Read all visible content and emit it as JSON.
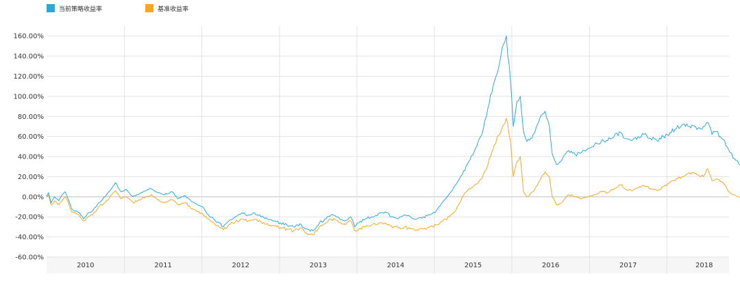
{
  "colors": {
    "strategy": "#2aa7de",
    "benchmark": "#f5a623",
    "grid": "#e2e2e2",
    "zero_line": "#bdbdbd",
    "axis_band": "#f6f6f6"
  },
  "chart_data": {
    "type": "line",
    "title": "",
    "xlabel": "",
    "ylabel": "",
    "legend_position": "top-left",
    "grid": true,
    "ylim": [
      -60,
      170
    ],
    "xlim": [
      "2009-06-29",
      "2018-04-20"
    ],
    "y_ticks": [
      -60,
      -40,
      -20,
      0,
      20,
      40,
      60,
      80,
      100,
      120,
      140,
      160
    ],
    "y_tick_labels": [
      "-60.00%",
      "-40.00%",
      "-20.00%",
      "0.00%",
      "20.00%",
      "40.00%",
      "60.00%",
      "80.00%",
      "100.00%",
      "120.00%",
      "140.00%",
      "160.00%"
    ],
    "x_ticks": [
      "2010",
      "2011",
      "2012",
      "2013",
      "2014",
      "2015",
      "2016",
      "2017",
      "2018"
    ],
    "x_gridlines": [
      "2010-07-01",
      "2011-07-01",
      "2012-07-01",
      "2013-07-01",
      "2014-07-01",
      "2015-07-01",
      "2016-07-01",
      "2017-07-01"
    ],
    "series": [
      {
        "name": "当前策略收益率",
        "key": "strategy",
        "points": [
          [
            "2009-06-29",
            0
          ],
          [
            "2009-07-08",
            4
          ],
          [
            "2009-07-20",
            -6
          ],
          [
            "2009-08-05",
            0
          ],
          [
            "2009-08-25",
            -4
          ],
          [
            "2009-09-10",
            2
          ],
          [
            "2009-09-25",
            5
          ],
          [
            "2009-10-10",
            -3
          ],
          [
            "2009-10-25",
            -12
          ],
          [
            "2009-11-15",
            -14
          ],
          [
            "2009-12-01",
            -16
          ],
          [
            "2009-12-20",
            -22
          ],
          [
            "2010-01-10",
            -16
          ],
          [
            "2010-02-01",
            -14
          ],
          [
            "2010-03-01",
            -6
          ],
          [
            "2010-04-01",
            0
          ],
          [
            "2010-05-01",
            8
          ],
          [
            "2010-05-20",
            14
          ],
          [
            "2010-06-15",
            5
          ],
          [
            "2010-07-10",
            7
          ],
          [
            "2010-08-10",
            0
          ],
          [
            "2010-09-10",
            3
          ],
          [
            "2010-10-10",
            6
          ],
          [
            "2010-11-05",
            8
          ],
          [
            "2010-12-05",
            4
          ],
          [
            "2011-01-05",
            2
          ],
          [
            "2011-02-10",
            5
          ],
          [
            "2011-03-10",
            -2
          ],
          [
            "2011-04-15",
            1
          ],
          [
            "2011-05-15",
            -5
          ],
          [
            "2011-06-10",
            -8
          ],
          [
            "2011-07-05",
            -10
          ],
          [
            "2011-08-01",
            -18
          ],
          [
            "2011-08-25",
            -22
          ],
          [
            "2011-09-20",
            -26
          ],
          [
            "2011-10-10",
            -30
          ],
          [
            "2011-11-05",
            -24
          ],
          [
            "2011-12-05",
            -20
          ],
          [
            "2012-01-05",
            -16
          ],
          [
            "2012-02-05",
            -18
          ],
          [
            "2012-03-05",
            -16
          ],
          [
            "2012-04-05",
            -20
          ],
          [
            "2012-05-05",
            -22
          ],
          [
            "2012-06-05",
            -24
          ],
          [
            "2012-07-05",
            -26
          ],
          [
            "2012-08-05",
            -28
          ],
          [
            "2012-09-05",
            -30
          ],
          [
            "2012-10-05",
            -27
          ],
          [
            "2012-11-05",
            -32
          ],
          [
            "2012-12-05",
            -34
          ],
          [
            "2013-01-05",
            -26
          ],
          [
            "2013-02-05",
            -22
          ],
          [
            "2013-03-01",
            -18
          ],
          [
            "2013-04-01",
            -20
          ],
          [
            "2013-05-01",
            -24
          ],
          [
            "2013-06-01",
            -20
          ],
          [
            "2013-06-20",
            -30
          ],
          [
            "2013-07-10",
            -26
          ],
          [
            "2013-08-10",
            -22
          ],
          [
            "2013-09-10",
            -20
          ],
          [
            "2013-10-10",
            -17
          ],
          [
            "2013-11-10",
            -15
          ],
          [
            "2013-12-10",
            -20
          ],
          [
            "2014-01-10",
            -22
          ],
          [
            "2014-02-10",
            -18
          ],
          [
            "2014-03-10",
            -20
          ],
          [
            "2014-04-10",
            -22
          ],
          [
            "2014-05-10",
            -20
          ],
          [
            "2014-06-10",
            -18
          ],
          [
            "2014-07-10",
            -14
          ],
          [
            "2014-08-10",
            -5
          ],
          [
            "2014-09-10",
            3
          ],
          [
            "2014-10-10",
            12
          ],
          [
            "2014-11-10",
            22
          ],
          [
            "2014-12-10",
            35
          ],
          [
            "2015-01-10",
            48
          ],
          [
            "2015-02-10",
            62
          ],
          [
            "2015-03-10",
            88
          ],
          [
            "2015-04-10",
            115
          ],
          [
            "2015-05-10",
            140
          ],
          [
            "2015-06-05",
            160
          ],
          [
            "2015-06-25",
            115
          ],
          [
            "2015-07-08",
            70
          ],
          [
            "2015-07-25",
            95
          ],
          [
            "2015-08-10",
            100
          ],
          [
            "2015-08-25",
            65
          ],
          [
            "2015-09-10",
            55
          ],
          [
            "2015-10-10",
            62
          ],
          [
            "2015-11-10",
            78
          ],
          [
            "2015-12-05",
            85
          ],
          [
            "2015-12-25",
            70
          ],
          [
            "2016-01-08",
            42
          ],
          [
            "2016-01-28",
            32
          ],
          [
            "2016-02-25",
            38
          ],
          [
            "2016-03-25",
            46
          ],
          [
            "2016-04-25",
            42
          ],
          [
            "2016-05-25",
            44
          ],
          [
            "2016-06-25",
            48
          ],
          [
            "2016-07-25",
            52
          ],
          [
            "2016-08-25",
            55
          ],
          [
            "2016-09-25",
            56
          ],
          [
            "2016-10-25",
            60
          ],
          [
            "2016-11-25",
            64
          ],
          [
            "2016-12-15",
            58
          ],
          [
            "2017-01-15",
            56
          ],
          [
            "2017-02-15",
            60
          ],
          [
            "2017-03-15",
            62
          ],
          [
            "2017-04-15",
            58
          ],
          [
            "2017-05-15",
            56
          ],
          [
            "2017-06-15",
            60
          ],
          [
            "2017-07-15",
            64
          ],
          [
            "2017-08-15",
            68
          ],
          [
            "2017-09-15",
            72
          ],
          [
            "2017-10-15",
            70
          ],
          [
            "2017-11-20",
            67
          ],
          [
            "2017-12-20",
            70
          ],
          [
            "2018-01-10",
            74
          ],
          [
            "2018-01-30",
            62
          ],
          [
            "2018-02-20",
            65
          ],
          [
            "2018-03-10",
            60
          ],
          [
            "2018-03-30",
            56
          ],
          [
            "2018-04-10",
            50
          ],
          [
            "2018-04-25",
            44
          ],
          [
            "2018-05-15",
            38
          ],
          [
            "2018-06-05",
            33
          ],
          [
            "2018-06-25",
            28
          ],
          [
            "2018-07-10",
            32
          ]
        ]
      },
      {
        "name": "基准收益率",
        "key": "benchmark",
        "points": [
          [
            "2009-06-29",
            0
          ],
          [
            "2009-07-08",
            2
          ],
          [
            "2009-07-20",
            -8
          ],
          [
            "2009-08-05",
            -4
          ],
          [
            "2009-08-25",
            -8
          ],
          [
            "2009-09-10",
            -4
          ],
          [
            "2009-09-25",
            0
          ],
          [
            "2009-10-10",
            -6
          ],
          [
            "2009-10-25",
            -15
          ],
          [
            "2009-11-15",
            -17
          ],
          [
            "2009-12-01",
            -19
          ],
          [
            "2009-12-20",
            -24
          ],
          [
            "2010-01-10",
            -20
          ],
          [
            "2010-02-01",
            -18
          ],
          [
            "2010-03-01",
            -10
          ],
          [
            "2010-04-01",
            -6
          ],
          [
            "2010-05-01",
            2
          ],
          [
            "2010-05-20",
            6
          ],
          [
            "2010-06-15",
            -2
          ],
          [
            "2010-07-10",
            0
          ],
          [
            "2010-08-10",
            -6
          ],
          [
            "2010-09-10",
            -3
          ],
          [
            "2010-10-10",
            0
          ],
          [
            "2010-11-05",
            2
          ],
          [
            "2010-12-05",
            -3
          ],
          [
            "2011-01-05",
            -6
          ],
          [
            "2011-02-10",
            -3
          ],
          [
            "2011-03-10",
            -8
          ],
          [
            "2011-04-15",
            -6
          ],
          [
            "2011-05-15",
            -12
          ],
          [
            "2011-06-10",
            -15
          ],
          [
            "2011-07-05",
            -17
          ],
          [
            "2011-08-01",
            -22
          ],
          [
            "2011-08-25",
            -26
          ],
          [
            "2011-09-20",
            -30
          ],
          [
            "2011-10-10",
            -33
          ],
          [
            "2011-11-05",
            -28
          ],
          [
            "2011-12-05",
            -25
          ],
          [
            "2012-01-05",
            -22
          ],
          [
            "2012-02-05",
            -24
          ],
          [
            "2012-03-05",
            -22
          ],
          [
            "2012-04-05",
            -25
          ],
          [
            "2012-05-05",
            -27
          ],
          [
            "2012-06-05",
            -29
          ],
          [
            "2012-07-05",
            -31
          ],
          [
            "2012-08-05",
            -32
          ],
          [
            "2012-09-05",
            -34
          ],
          [
            "2012-10-05",
            -31
          ],
          [
            "2012-11-05",
            -36
          ],
          [
            "2012-12-05",
            -38
          ],
          [
            "2013-01-05",
            -30
          ],
          [
            "2013-02-05",
            -26
          ],
          [
            "2013-03-01",
            -22
          ],
          [
            "2013-04-01",
            -24
          ],
          [
            "2013-05-01",
            -27
          ],
          [
            "2013-06-01",
            -24
          ],
          [
            "2013-06-20",
            -34
          ],
          [
            "2013-07-10",
            -32
          ],
          [
            "2013-08-10",
            -30
          ],
          [
            "2013-09-10",
            -28
          ],
          [
            "2013-10-10",
            -27
          ],
          [
            "2013-11-10",
            -26
          ],
          [
            "2013-12-10",
            -29
          ],
          [
            "2014-01-10",
            -31
          ],
          [
            "2014-02-10",
            -30
          ],
          [
            "2014-03-10",
            -32
          ],
          [
            "2014-04-10",
            -33
          ],
          [
            "2014-05-10",
            -32
          ],
          [
            "2014-06-10",
            -30
          ],
          [
            "2014-07-10",
            -28
          ],
          [
            "2014-08-10",
            -24
          ],
          [
            "2014-09-10",
            -20
          ],
          [
            "2014-10-10",
            -14
          ],
          [
            "2014-11-10",
            0
          ],
          [
            "2014-12-10",
            8
          ],
          [
            "2015-01-10",
            12
          ],
          [
            "2015-02-10",
            18
          ],
          [
            "2015-03-10",
            32
          ],
          [
            "2015-04-10",
            52
          ],
          [
            "2015-05-10",
            65
          ],
          [
            "2015-06-05",
            78
          ],
          [
            "2015-06-25",
            55
          ],
          [
            "2015-07-08",
            20
          ],
          [
            "2015-07-25",
            35
          ],
          [
            "2015-08-10",
            40
          ],
          [
            "2015-08-25",
            5
          ],
          [
            "2015-09-10",
            0
          ],
          [
            "2015-10-10",
            5
          ],
          [
            "2015-11-10",
            16
          ],
          [
            "2015-12-05",
            25
          ],
          [
            "2015-12-25",
            20
          ],
          [
            "2016-01-08",
            0
          ],
          [
            "2016-01-28",
            -8
          ],
          [
            "2016-02-25",
            -5
          ],
          [
            "2016-03-25",
            2
          ],
          [
            "2016-04-25",
            0
          ],
          [
            "2016-05-25",
            -2
          ],
          [
            "2016-06-25",
            0
          ],
          [
            "2016-07-25",
            2
          ],
          [
            "2016-08-25",
            5
          ],
          [
            "2016-09-25",
            4
          ],
          [
            "2016-10-25",
            8
          ],
          [
            "2016-11-25",
            12
          ],
          [
            "2016-12-15",
            8
          ],
          [
            "2017-01-15",
            6
          ],
          [
            "2017-02-15",
            9
          ],
          [
            "2017-03-15",
            11
          ],
          [
            "2017-04-15",
            8
          ],
          [
            "2017-05-15",
            6
          ],
          [
            "2017-06-15",
            10
          ],
          [
            "2017-07-15",
            14
          ],
          [
            "2017-08-15",
            18
          ],
          [
            "2017-09-15",
            20
          ],
          [
            "2017-10-15",
            24
          ],
          [
            "2017-11-20",
            22
          ],
          [
            "2017-12-20",
            20
          ],
          [
            "2018-01-10",
            28
          ],
          [
            "2018-01-30",
            16
          ],
          [
            "2018-02-20",
            18
          ],
          [
            "2018-03-10",
            15
          ],
          [
            "2018-03-30",
            12
          ],
          [
            "2018-04-10",
            8
          ],
          [
            "2018-04-25",
            4
          ],
          [
            "2018-05-15",
            2
          ],
          [
            "2018-06-05",
            0
          ],
          [
            "2018-06-25",
            -3
          ],
          [
            "2018-07-10",
            1
          ]
        ]
      }
    ]
  }
}
